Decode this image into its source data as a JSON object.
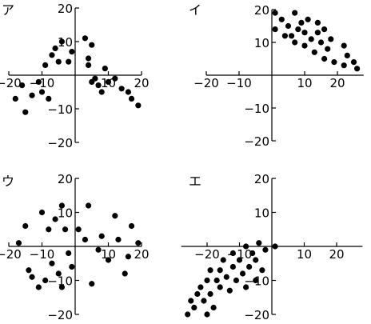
{
  "chart_data": [
    {
      "type": "scatter",
      "panel_label": "ア",
      "xlim": [
        -20,
        20
      ],
      "ylim": [
        -20,
        20
      ],
      "x_ticks": [
        -20,
        -10,
        10,
        20
      ],
      "y_ticks": [
        20,
        10,
        -10,
        -20
      ],
      "points": [
        [
          -18,
          -7
        ],
        [
          -16,
          -3
        ],
        [
          -15,
          -11
        ],
        [
          -13,
          -6
        ],
        [
          -11,
          -2
        ],
        [
          -10,
          -5
        ],
        [
          -9,
          3
        ],
        [
          -8,
          -7
        ],
        [
          -7,
          6
        ],
        [
          -6,
          8
        ],
        [
          -5,
          4
        ],
        [
          -4,
          10
        ],
        [
          -2,
          4
        ],
        [
          -1,
          7
        ],
        [
          3,
          11
        ],
        [
          4,
          5
        ],
        [
          4,
          3
        ],
        [
          5,
          9
        ],
        [
          5,
          -2
        ],
        [
          6,
          -1
        ],
        [
          7,
          -3
        ],
        [
          8,
          -5
        ],
        [
          9,
          2
        ],
        [
          10,
          -2
        ],
        [
          12,
          -1
        ],
        [
          14,
          -4
        ],
        [
          16,
          -5
        ],
        [
          17,
          -7
        ],
        [
          19,
          -9
        ]
      ]
    },
    {
      "type": "scatter",
      "panel_label": "イ",
      "xlim": [
        -20,
        28
      ],
      "ylim": [
        -20,
        20
      ],
      "x_ticks": [
        -20,
        -10,
        10,
        20
      ],
      "y_ticks": [
        20,
        10,
        -10,
        -20
      ],
      "points": [
        [
          1,
          19
        ],
        [
          1,
          14
        ],
        [
          3,
          17
        ],
        [
          4,
          12
        ],
        [
          5,
          15
        ],
        [
          6,
          12
        ],
        [
          7,
          10
        ],
        [
          7,
          19
        ],
        [
          8,
          14
        ],
        [
          9,
          16
        ],
        [
          10,
          13
        ],
        [
          10,
          9
        ],
        [
          11,
          17
        ],
        [
          12,
          11
        ],
        [
          13,
          7
        ],
        [
          14,
          16
        ],
        [
          14,
          13
        ],
        [
          15,
          10
        ],
        [
          16,
          5
        ],
        [
          16,
          14
        ],
        [
          17,
          8
        ],
        [
          18,
          11
        ],
        [
          19,
          4
        ],
        [
          22,
          9
        ],
        [
          22,
          3
        ],
        [
          23,
          6
        ],
        [
          25,
          4
        ],
        [
          26,
          2
        ]
      ]
    },
    {
      "type": "scatter",
      "panel_label": "ウ",
      "xlim": [
        -20,
        20
      ],
      "ylim": [
        -20,
        20
      ],
      "x_ticks": [
        -20,
        -10,
        10,
        20
      ],
      "y_ticks": [
        20,
        10,
        -10,
        -20
      ],
      "points": [
        [
          -17,
          1
        ],
        [
          -15,
          6
        ],
        [
          -14,
          -7
        ],
        [
          -13,
          -9
        ],
        [
          -11,
          -12
        ],
        [
          -10,
          10
        ],
        [
          -9,
          -10
        ],
        [
          -8,
          5
        ],
        [
          -7,
          -5
        ],
        [
          -6,
          8
        ],
        [
          -5,
          -8
        ],
        [
          -4,
          -12
        ],
        [
          -4,
          12
        ],
        [
          -3,
          5
        ],
        [
          -2,
          -2
        ],
        [
          -1,
          -6
        ],
        [
          1,
          5
        ],
        [
          3,
          2
        ],
        [
          4,
          12
        ],
        [
          5,
          -11
        ],
        [
          7,
          -1
        ],
        [
          8,
          3
        ],
        [
          10,
          -4
        ],
        [
          12,
          9
        ],
        [
          13,
          2
        ],
        [
          15,
          -8
        ],
        [
          16,
          -3
        ],
        [
          17,
          6
        ],
        [
          19,
          1
        ]
      ]
    },
    {
      "type": "scatter",
      "panel_label": "エ",
      "xlim": [
        -28,
        28
      ],
      "ylim": [
        -20,
        20
      ],
      "x_ticks": [
        -20,
        -10,
        10,
        20
      ],
      "y_ticks": [
        20,
        10,
        -10,
        -20
      ],
      "points": [
        [
          -26,
          -20
        ],
        [
          -25,
          -16
        ],
        [
          -24,
          -18
        ],
        [
          -23,
          -14
        ],
        [
          -22,
          -12
        ],
        [
          -21,
          -16
        ],
        [
          -20,
          -10
        ],
        [
          -20,
          -20
        ],
        [
          -19,
          -7
        ],
        [
          -19,
          -14
        ],
        [
          -18,
          -18
        ],
        [
          -17,
          -10
        ],
        [
          -16,
          -12
        ],
        [
          -16,
          -7
        ],
        [
          -15,
          -4
        ],
        [
          -14,
          -9
        ],
        [
          -13,
          -13
        ],
        [
          -12,
          -6
        ],
        [
          -12,
          -2
        ],
        [
          -11,
          -10
        ],
        [
          -10,
          -4
        ],
        [
          -9,
          -8
        ],
        [
          -8,
          0
        ],
        [
          -8,
          -12
        ],
        [
          -7,
          -6
        ],
        [
          -6,
          -2
        ],
        [
          -5,
          -10
        ],
        [
          -5,
          -4
        ],
        [
          -4,
          1
        ],
        [
          -3,
          -7
        ],
        [
          -2,
          -1
        ],
        [
          1,
          0
        ]
      ]
    }
  ]
}
